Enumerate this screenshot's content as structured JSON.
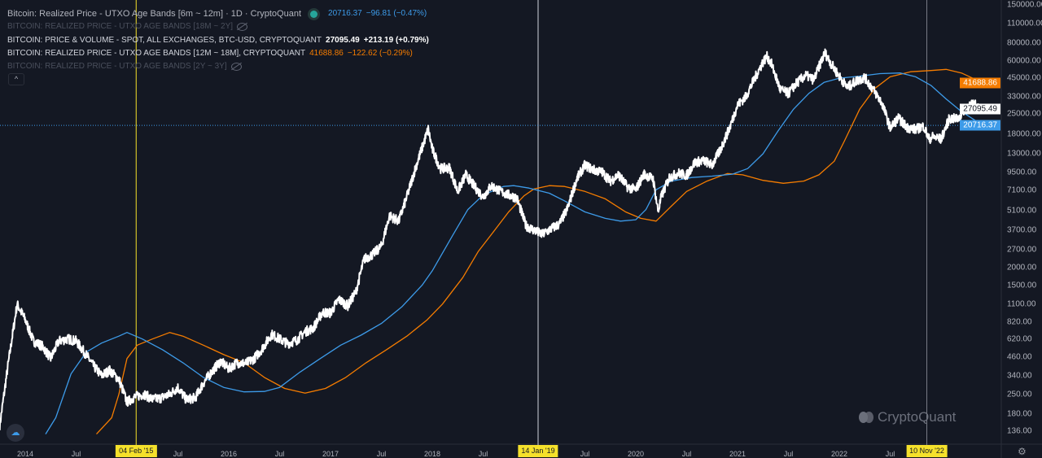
{
  "legend": {
    "main_title": "Bitcoin: Realized Price - UTXO Age Bands [6m ~ 12m] · 1D · CryptoQuant",
    "main_value": "20716.37",
    "main_change": "−96.81 (−0.47%)",
    "hidden_1": "BITCOIN: REALIZED PRICE - UTXO AGE BANDS [18M ~ 2Y]",
    "price_title": "BITCOIN: PRICE & VOLUME - SPOT, ALL EXCHANGES, BTC-USD, CRYPTOQUANT",
    "price_value": "27095.49",
    "price_change": "+213.19 (+0.79%)",
    "band12_title": "BITCOIN: REALIZED PRICE - UTXO AGE BANDS [12M ~ 18M], CRYPTOQUANT",
    "band12_value": "41688.86",
    "band12_change": "−122.62 (−0.29%)",
    "hidden_2": "BITCOIN: REALIZED PRICE - UTXO AGE BANDS [2Y ~ 3Y]",
    "collapse_icon": "chevron-up"
  },
  "logo": "CryptoQuant",
  "colors": {
    "price": "#ffffff",
    "band_6m_12m": "#3d9be9",
    "band_12m_18m": "#f57c00",
    "marker_1": "#f5e12b",
    "background": "#141823"
  },
  "chart_data": {
    "type": "line",
    "y_scale": "log",
    "ylim": [
      120,
      150000
    ],
    "y_ticks": [
      "150000.00",
      "110000.00",
      "80000.00",
      "60000.00",
      "45000.00",
      "33000.00",
      "25000.00",
      "18000.00",
      "13000.00",
      "9500.00",
      "7100.00",
      "5100.00",
      "3700.00",
      "2700.00",
      "2000.00",
      "1500.00",
      "1100.00",
      "820.00",
      "620.00",
      "460.00",
      "340.00",
      "250.00",
      "180.00",
      "136.00"
    ],
    "x_ticks": [
      {
        "label": "2014",
        "date": 2014.0
      },
      {
        "label": "Jul",
        "date": 2014.5
      },
      {
        "label": "Jul",
        "date": 2015.5
      },
      {
        "label": "2016",
        "date": 2016.0
      },
      {
        "label": "Jul",
        "date": 2016.5
      },
      {
        "label": "2017",
        "date": 2017.0
      },
      {
        "label": "Jul",
        "date": 2017.5
      },
      {
        "label": "2018",
        "date": 2018.0
      },
      {
        "label": "Jul",
        "date": 2018.5
      },
      {
        "label": "Jul",
        "date": 2019.5
      },
      {
        "label": "2020",
        "date": 2020.0
      },
      {
        "label": "Jul",
        "date": 2020.5
      },
      {
        "label": "2021",
        "date": 2021.0
      },
      {
        "label": "Jul",
        "date": 2021.5
      },
      {
        "label": "2022",
        "date": 2022.0
      },
      {
        "label": "Jul",
        "date": 2022.5
      }
    ],
    "markers": [
      {
        "label": "04 Feb '15",
        "date": 2015.09,
        "color": "#f5e12b"
      },
      {
        "label": "14 Jan '19",
        "date": 2019.04,
        "color": "#d1d4dc"
      },
      {
        "label": "10 Nov '22",
        "date": 2022.86,
        "color": "#787b86"
      }
    ],
    "last_values": {
      "band_12m_18m": "41688.86",
      "price": "27095.49",
      "band_6m_12m": "20716.37"
    },
    "series": [
      {
        "name": "BITCOIN: PRICE & VOLUME - SPOT, ALL EXCHANGES, BTC-USD, CRYPTOQUANT",
        "color": "#ffffff",
        "points": [
          [
            2013.75,
            150
          ],
          [
            2013.83,
            400
          ],
          [
            2013.92,
            1100
          ],
          [
            2014.0,
            850
          ],
          [
            2014.08,
            600
          ],
          [
            2014.17,
            550
          ],
          [
            2014.25,
            450
          ],
          [
            2014.33,
            600
          ],
          [
            2014.42,
            620
          ],
          [
            2014.5,
            600
          ],
          [
            2014.58,
            500
          ],
          [
            2014.67,
            400
          ],
          [
            2014.75,
            340
          ],
          [
            2014.83,
            370
          ],
          [
            2014.92,
            320
          ],
          [
            2015.0,
            220
          ],
          [
            2015.08,
            240
          ],
          [
            2015.17,
            250
          ],
          [
            2015.25,
            230
          ],
          [
            2015.33,
            235
          ],
          [
            2015.42,
            250
          ],
          [
            2015.5,
            280
          ],
          [
            2015.58,
            230
          ],
          [
            2015.67,
            235
          ],
          [
            2015.75,
            300
          ],
          [
            2015.83,
            360
          ],
          [
            2015.92,
            430
          ],
          [
            2016.0,
            380
          ],
          [
            2016.08,
            420
          ],
          [
            2016.17,
            415
          ],
          [
            2016.25,
            450
          ],
          [
            2016.33,
            530
          ],
          [
            2016.42,
            670
          ],
          [
            2016.5,
            620
          ],
          [
            2016.58,
            575
          ],
          [
            2016.67,
            610
          ],
          [
            2016.75,
            700
          ],
          [
            2016.83,
            740
          ],
          [
            2016.92,
            960
          ],
          [
            2017.0,
            950
          ],
          [
            2017.08,
            1190
          ],
          [
            2017.17,
            1070
          ],
          [
            2017.25,
            1350
          ],
          [
            2017.33,
            2300
          ],
          [
            2017.42,
            2500
          ],
          [
            2017.5,
            2850
          ],
          [
            2017.58,
            4700
          ],
          [
            2017.67,
            4300
          ],
          [
            2017.75,
            6400
          ],
          [
            2017.83,
            10000
          ],
          [
            2017.96,
            19500
          ],
          [
            2018.0,
            14000
          ],
          [
            2018.08,
            10200
          ],
          [
            2018.17,
            10300
          ],
          [
            2018.25,
            7000
          ],
          [
            2018.33,
            9200
          ],
          [
            2018.42,
            7500
          ],
          [
            2018.5,
            6400
          ],
          [
            2018.58,
            7700
          ],
          [
            2018.67,
            7000
          ],
          [
            2018.75,
            6600
          ],
          [
            2018.83,
            6300
          ],
          [
            2018.92,
            4000
          ],
          [
            2019.0,
            3700
          ],
          [
            2019.08,
            3450
          ],
          [
            2019.17,
            3800
          ],
          [
            2019.25,
            4100
          ],
          [
            2019.33,
            5300
          ],
          [
            2019.42,
            8600
          ],
          [
            2019.5,
            10800
          ],
          [
            2019.58,
            10000
          ],
          [
            2019.67,
            9600
          ],
          [
            2019.75,
            8300
          ],
          [
            2019.83,
            9200
          ],
          [
            2019.92,
            7500
          ],
          [
            2020.0,
            7200
          ],
          [
            2020.08,
            9300
          ],
          [
            2020.17,
            8600
          ],
          [
            2020.22,
            5000
          ],
          [
            2020.25,
            6400
          ],
          [
            2020.33,
            8800
          ],
          [
            2020.42,
            9450
          ],
          [
            2020.5,
            9100
          ],
          [
            2020.58,
            11300
          ],
          [
            2020.67,
            11600
          ],
          [
            2020.75,
            10800
          ],
          [
            2020.83,
            13800
          ],
          [
            2020.92,
            19700
          ],
          [
            2021.0,
            29000
          ],
          [
            2021.08,
            33000
          ],
          [
            2021.17,
            45000
          ],
          [
            2021.25,
            58800
          ],
          [
            2021.29,
            64000
          ],
          [
            2021.33,
            57700
          ],
          [
            2021.42,
            37300
          ],
          [
            2021.5,
            35000
          ],
          [
            2021.58,
            41500
          ],
          [
            2021.67,
            47100
          ],
          [
            2021.75,
            43800
          ],
          [
            2021.83,
            61300
          ],
          [
            2021.86,
            68000
          ],
          [
            2021.92,
            57000
          ],
          [
            2022.0,
            46300
          ],
          [
            2022.08,
            38500
          ],
          [
            2022.17,
            43200
          ],
          [
            2022.25,
            45500
          ],
          [
            2022.33,
            37700
          ],
          [
            2022.42,
            29800
          ],
          [
            2022.5,
            19900
          ],
          [
            2022.58,
            23300
          ],
          [
            2022.67,
            20000
          ],
          [
            2022.75,
            19400
          ],
          [
            2022.83,
            20500
          ],
          [
            2022.88,
            16500
          ],
          [
            2022.92,
            17200
          ],
          [
            2023.0,
            16500
          ],
          [
            2023.08,
            23100
          ],
          [
            2023.17,
            23100
          ],
          [
            2023.25,
            28500
          ],
          [
            2023.33,
            29200
          ],
          [
            2023.41,
            27095
          ]
        ]
      },
      {
        "name": "BITCOIN: REALIZED PRICE - UTXO AGE BANDS [6m ~ 12m]",
        "color": "#3d9be9",
        "points": [
          [
            2014.2,
            130
          ],
          [
            2014.3,
            170
          ],
          [
            2014.45,
            350
          ],
          [
            2014.6,
            500
          ],
          [
            2014.75,
            580
          ],
          [
            2014.92,
            650
          ],
          [
            2015.0,
            690
          ],
          [
            2015.15,
            620
          ],
          [
            2015.35,
            520
          ],
          [
            2015.55,
            420
          ],
          [
            2015.75,
            330
          ],
          [
            2015.95,
            280
          ],
          [
            2016.15,
            260
          ],
          [
            2016.35,
            262
          ],
          [
            2016.5,
            280
          ],
          [
            2016.7,
            360
          ],
          [
            2016.9,
            450
          ],
          [
            2017.1,
            560
          ],
          [
            2017.3,
            660
          ],
          [
            2017.5,
            800
          ],
          [
            2017.7,
            1050
          ],
          [
            2017.9,
            1500
          ],
          [
            2018.0,
            1900
          ],
          [
            2018.2,
            3400
          ],
          [
            2018.35,
            5200
          ],
          [
            2018.5,
            6600
          ],
          [
            2018.7,
            7600
          ],
          [
            2018.8,
            7700
          ],
          [
            2018.95,
            7400
          ],
          [
            2019.15,
            6800
          ],
          [
            2019.3,
            6000
          ],
          [
            2019.5,
            5000
          ],
          [
            2019.7,
            4500
          ],
          [
            2019.85,
            4300
          ],
          [
            2020.0,
            4400
          ],
          [
            2020.1,
            5200
          ],
          [
            2020.2,
            7200
          ],
          [
            2020.35,
            8300
          ],
          [
            2020.55,
            8800
          ],
          [
            2020.75,
            9000
          ],
          [
            2020.95,
            9300
          ],
          [
            2021.1,
            10200
          ],
          [
            2021.25,
            13000
          ],
          [
            2021.4,
            19000
          ],
          [
            2021.55,
            27000
          ],
          [
            2021.7,
            35000
          ],
          [
            2021.85,
            42000
          ],
          [
            2022.0,
            45000
          ],
          [
            2022.2,
            46500
          ],
          [
            2022.4,
            48500
          ],
          [
            2022.6,
            49000
          ],
          [
            2022.75,
            46000
          ],
          [
            2022.9,
            40000
          ],
          [
            2023.05,
            32000
          ],
          [
            2023.2,
            26000
          ],
          [
            2023.41,
            20716
          ]
        ]
      },
      {
        "name": "BITCOIN: REALIZED PRICE - UTXO AGE BANDS [12M ~ 18M]",
        "color": "#f57c00",
        "points": [
          [
            2014.7,
            130
          ],
          [
            2014.85,
            170
          ],
          [
            2014.92,
            250
          ],
          [
            2015.0,
            450
          ],
          [
            2015.1,
            560
          ],
          [
            2015.25,
            620
          ],
          [
            2015.42,
            690
          ],
          [
            2015.55,
            650
          ],
          [
            2015.75,
            560
          ],
          [
            2015.95,
            480
          ],
          [
            2016.15,
            420
          ],
          [
            2016.35,
            330
          ],
          [
            2016.55,
            275
          ],
          [
            2016.75,
            255
          ],
          [
            2016.95,
            275
          ],
          [
            2017.15,
            330
          ],
          [
            2017.35,
            420
          ],
          [
            2017.55,
            520
          ],
          [
            2017.75,
            650
          ],
          [
            2017.95,
            850
          ],
          [
            2018.1,
            1100
          ],
          [
            2018.3,
            1700
          ],
          [
            2018.45,
            2600
          ],
          [
            2018.6,
            3600
          ],
          [
            2018.75,
            5000
          ],
          [
            2018.9,
            6500
          ],
          [
            2019.0,
            7300
          ],
          [
            2019.15,
            7700
          ],
          [
            2019.3,
            7600
          ],
          [
            2019.5,
            7000
          ],
          [
            2019.7,
            6200
          ],
          [
            2019.9,
            5000
          ],
          [
            2020.05,
            4500
          ],
          [
            2020.2,
            4300
          ],
          [
            2020.35,
            5500
          ],
          [
            2020.5,
            7000
          ],
          [
            2020.7,
            8300
          ],
          [
            2020.9,
            9400
          ],
          [
            2021.05,
            9200
          ],
          [
            2021.25,
            8400
          ],
          [
            2021.45,
            8000
          ],
          [
            2021.65,
            8300
          ],
          [
            2021.8,
            9200
          ],
          [
            2021.95,
            11500
          ],
          [
            2022.05,
            16000
          ],
          [
            2022.2,
            27000
          ],
          [
            2022.35,
            38000
          ],
          [
            2022.5,
            46000
          ],
          [
            2022.7,
            50000
          ],
          [
            2022.9,
            51000
          ],
          [
            2023.05,
            52000
          ],
          [
            2023.2,
            49000
          ],
          [
            2023.41,
            41688
          ]
        ]
      }
    ]
  }
}
